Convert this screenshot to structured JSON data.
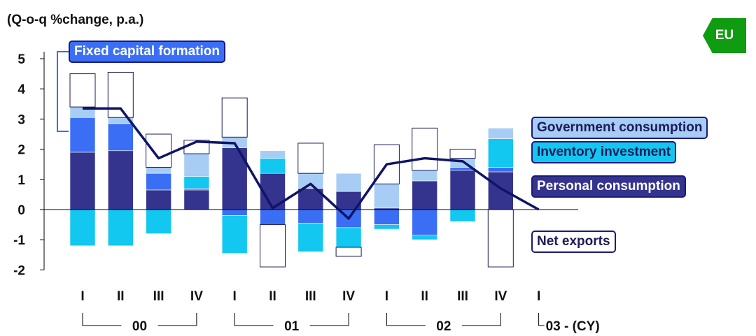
{
  "unit_label": "(Q-o-q %change, p.a.)",
  "badge": "EU",
  "colors": {
    "personal": "#34348f",
    "fixed": "#3a6ef5",
    "inventory": "#12c7f0",
    "government": "#a8cdf5",
    "net_exports": "#ffffff",
    "line": "#0f1466"
  },
  "chart_data": {
    "type": "bar",
    "stacked": true,
    "categories": [
      "I",
      "II",
      "III",
      "IV",
      "I",
      "II",
      "III",
      "IV",
      "I",
      "II",
      "III",
      "IV",
      "I"
    ],
    "year_groups": [
      {
        "label": "00",
        "start": 0,
        "end": 3
      },
      {
        "label": "01",
        "start": 4,
        "end": 7
      },
      {
        "label": "02",
        "start": 8,
        "end": 11
      },
      {
        "label": "03 - (CY)",
        "start": 12,
        "end": 12
      }
    ],
    "ylim": [
      -2,
      5
    ],
    "yticks": [
      -2,
      -1,
      0,
      1,
      2,
      3,
      4,
      5
    ],
    "series": [
      {
        "name": "Personal consumption",
        "key": "personal",
        "values": [
          1.9,
          1.95,
          0.65,
          0.65,
          2.05,
          1.2,
          0.7,
          0.6,
          0.05,
          0.95,
          1.3,
          1.25,
          null
        ]
      },
      {
        "name": "Fixed capital formation",
        "key": "fixed",
        "values": [
          1.15,
          0.9,
          0.55,
          0.05,
          -0.2,
          -0.5,
          -0.45,
          -0.6,
          -0.5,
          -0.85,
          0.1,
          0.15,
          null
        ]
      },
      {
        "name": "Inventory investment",
        "key": "inventory",
        "values": [
          -1.2,
          -1.2,
          -0.8,
          0.4,
          -1.25,
          0.5,
          -0.95,
          -0.65,
          -0.15,
          -0.15,
          -0.4,
          0.95,
          null
        ]
      },
      {
        "name": "Government consumption",
        "key": "government",
        "values": [
          0.35,
          0.2,
          0.2,
          0.75,
          0.35,
          0.25,
          0.5,
          0.6,
          0.8,
          0.35,
          0.3,
          0.35,
          null
        ]
      },
      {
        "name": "Net exports",
        "key": "net_exports",
        "values": [
          1.1,
          1.5,
          1.1,
          0.45,
          1.3,
          -1.4,
          1.0,
          -0.3,
          1.3,
          1.4,
          0.3,
          -1.9,
          null
        ]
      }
    ],
    "line": {
      "name": "GDP",
      "values": [
        3.35,
        3.35,
        1.7,
        2.25,
        2.2,
        0.05,
        0.85,
        -0.3,
        1.5,
        1.7,
        1.6,
        0.7,
        0.0
      ]
    },
    "legend": {
      "fixed": "Fixed capital formation",
      "government": "Government consumption",
      "inventory": "Inventory investment",
      "personal": "Personal consumption",
      "net_exports": "Net exports"
    }
  }
}
